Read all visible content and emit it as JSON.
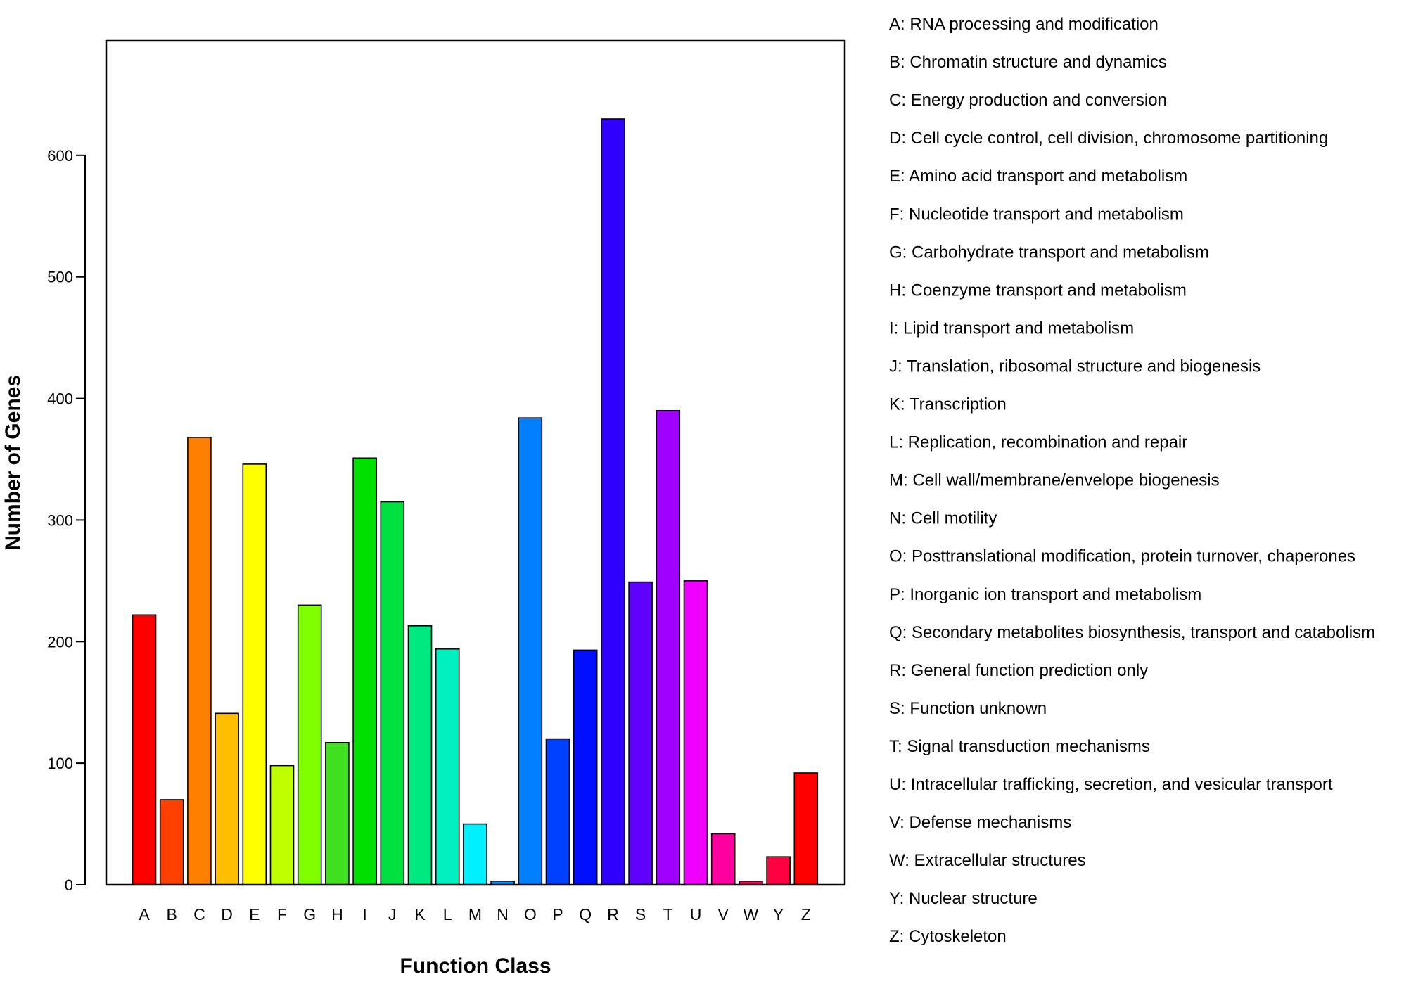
{
  "chart_data": {
    "type": "bar",
    "xlabel": "Function Class",
    "ylabel": "Number of Genes",
    "ylim": [
      0,
      700
    ],
    "yticks": [
      0,
      100,
      200,
      300,
      400,
      500,
      600
    ],
    "grid": false,
    "legend_position": "right",
    "categories": [
      "A",
      "B",
      "C",
      "D",
      "E",
      "F",
      "G",
      "H",
      "I",
      "J",
      "K",
      "L",
      "M",
      "N",
      "O",
      "P",
      "Q",
      "R",
      "S",
      "T",
      "U",
      "V",
      "W",
      "Y",
      "Z"
    ],
    "values": [
      222,
      70,
      368,
      141,
      346,
      98,
      230,
      117,
      351,
      315,
      213,
      194,
      50,
      3,
      384,
      120,
      193,
      630,
      249,
      390,
      250,
      42,
      3,
      23,
      92
    ],
    "colors": [
      "#ff0000",
      "#ff4000",
      "#ff8000",
      "#ffbf00",
      "#ffff00",
      "#bfff00",
      "#80ff00",
      "#40e020",
      "#00e000",
      "#00e040",
      "#00e880",
      "#00f0c0",
      "#00f0ff",
      "#0090ff",
      "#0080ff",
      "#0040ff",
      "#0010ff",
      "#3000ff",
      "#6000ff",
      "#a000ff",
      "#f000ff",
      "#ff00a0",
      "#ff0060",
      "#ff0040",
      "#ff0000"
    ],
    "legend": [
      "A: RNA processing and modification",
      "B: Chromatin structure and dynamics",
      "C: Energy production and conversion",
      "D: Cell cycle control, cell division, chromosome partitioning",
      "E: Amino acid transport and metabolism",
      "F: Nucleotide transport and metabolism",
      "G: Carbohydrate transport and metabolism",
      "H: Coenzyme transport and metabolism",
      "I: Lipid transport and metabolism",
      "J: Translation, ribosomal structure and biogenesis",
      "K: Transcription",
      "L: Replication, recombination and repair",
      "M: Cell wall/membrane/envelope biogenesis",
      "N: Cell motility",
      "O: Posttranslational modification, protein turnover, chaperones",
      "P: Inorganic ion transport and metabolism",
      "Q: Secondary metabolites biosynthesis, transport and catabolism",
      "R: General function prediction only",
      "S: Function unknown",
      "T: Signal transduction mechanisms",
      "U: Intracellular trafficking, secretion, and vesicular transport",
      "V: Defense mechanisms",
      "W: Extracellular structures",
      "Y: Nuclear structure",
      "Z: Cytoskeleton"
    ]
  }
}
